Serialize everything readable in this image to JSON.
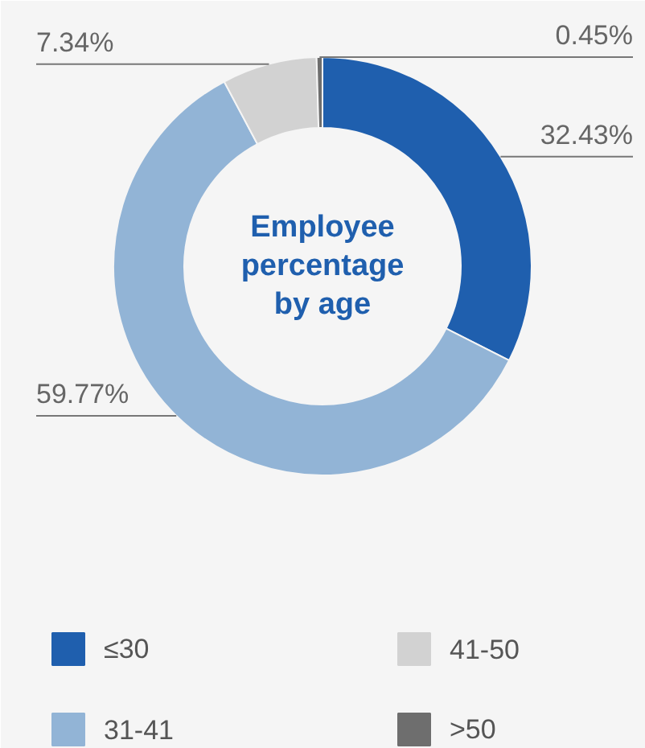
{
  "chart_data": {
    "type": "donut",
    "title": "Employee percentage by age",
    "categories": [
      "≤30",
      "31-41",
      "41-50",
      ">50"
    ],
    "values": [
      32.43,
      59.77,
      7.34,
      0.45
    ],
    "colors": [
      "#1f5fae",
      "#92b4d6",
      "#d2d2d2",
      "#6e6e6e"
    ],
    "value_labels": [
      "32.43%",
      "59.77%",
      "7.34%",
      "0.45%"
    ],
    "legend": "bottom"
  }
}
